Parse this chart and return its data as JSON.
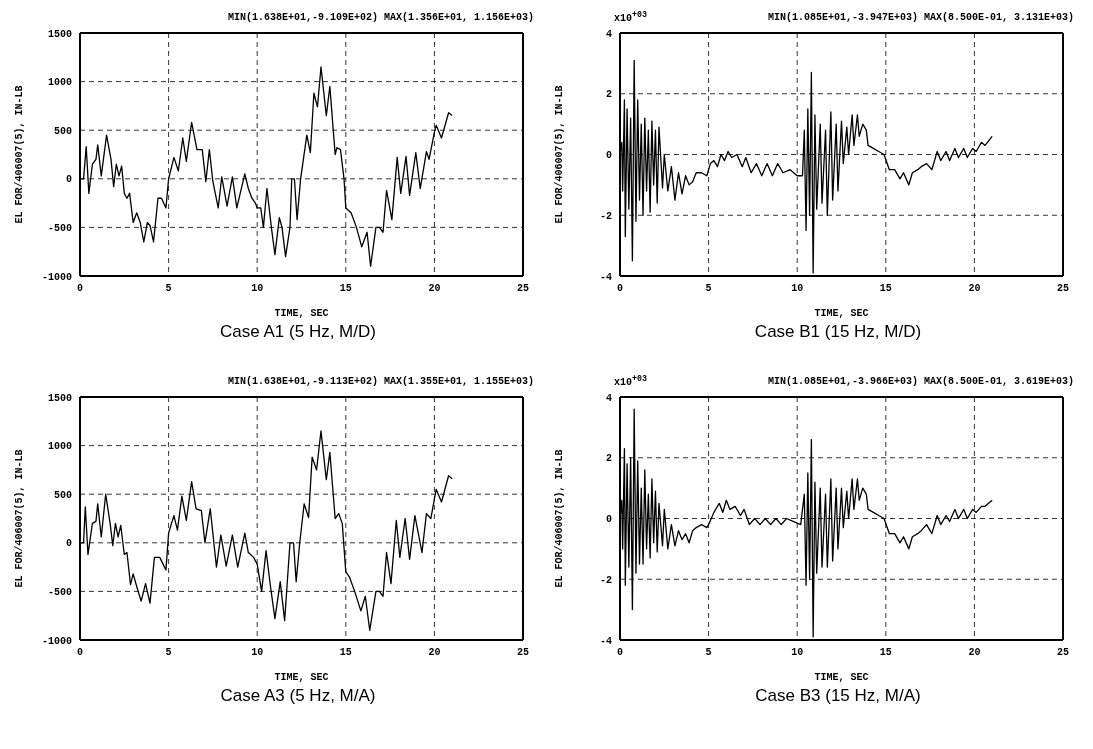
{
  "chart_data": [
    {
      "type": "line",
      "title": "MIN(1.638E+01,-9.109E+02) MAX(1.356E+01, 1.156E+03)",
      "xlabel": "TIME, SEC",
      "ylabel": "EL FOR/406007(5), IN-LB",
      "annotations": [
        "Case A1 (5 Hz, M/D)"
      ],
      "xlim": [
        0,
        25
      ],
      "xticks": [
        0,
        5,
        10,
        15,
        20,
        25
      ],
      "ylim": [
        -1000,
        1500
      ],
      "yticks": [
        -1000,
        -500,
        0,
        500,
        1000,
        1500
      ],
      "grid": true,
      "line_style": "solid",
      "series": [
        {
          "color": "#000000",
          "x": [
            0,
            0.2,
            0.35,
            0.5,
            0.7,
            0.9,
            1.0,
            1.2,
            1.5,
            1.75,
            1.9,
            2.05,
            2.2,
            2.35,
            2.5,
            2.65,
            2.8,
            3.0,
            3.2,
            3.4,
            3.6,
            3.8,
            3.95,
            4.15,
            4.4,
            4.6,
            4.85,
            5.0,
            5.3,
            5.55,
            5.8,
            6.0,
            6.3,
            6.6,
            6.9,
            7.1,
            7.3,
            7.5,
            7.8,
            8.0,
            8.3,
            8.6,
            8.85,
            9.3,
            9.5,
            9.7,
            9.9,
            10.0,
            10.2,
            10.35,
            10.55,
            10.8,
            11.0,
            11.25,
            11.4,
            11.6,
            11.85,
            11.95,
            12.1,
            12.25,
            12.45,
            12.8,
            13.0,
            13.2,
            13.4,
            13.6,
            13.9,
            14.1,
            14.4,
            14.5,
            14.7,
            14.9,
            15.0,
            15.3,
            15.6,
            15.9,
            16.2,
            16.4,
            16.7,
            16.9,
            17.1,
            17.3,
            17.6,
            17.9,
            18.1,
            18.4,
            18.6,
            18.95,
            19.2,
            19.55,
            19.7,
            20.0,
            20.1,
            20.4,
            20.8,
            21.0
          ],
          "values": [
            0,
            0,
            330,
            -150,
            150,
            200,
            350,
            30,
            450,
            200,
            -80,
            150,
            30,
            130,
            -150,
            -200,
            -150,
            -450,
            -350,
            -450,
            -650,
            -450,
            -480,
            -650,
            -200,
            -200,
            -300,
            0,
            220,
            80,
            420,
            180,
            580,
            300,
            300,
            -30,
            300,
            -30,
            -300,
            20,
            -280,
            20,
            -300,
            50,
            -100,
            -200,
            -250,
            -300,
            -300,
            -500,
            -100,
            -500,
            -780,
            -400,
            -500,
            -800,
            -500,
            0,
            0,
            -420,
            0,
            450,
            270,
            880,
            740,
            1150,
            650,
            950,
            250,
            320,
            300,
            0,
            -300,
            -350,
            -500,
            -700,
            -550,
            -900,
            -500,
            -500,
            -550,
            -120,
            -420,
            220,
            -150,
            230,
            -170,
            270,
            -100,
            280,
            200,
            480,
            550,
            420,
            680,
            650
          ]
        }
      ]
    },
    {
      "type": "line",
      "title": "MIN(1.085E+01,-3.947E+03) MAX(8.500E-01, 3.131E+03)",
      "xlabel": "TIME, SEC",
      "ylabel": "EL FOR/406007(5), IN-LB",
      "annotations": [
        "x10$^{+03}$",
        "Case B1 (15 Hz, M/D)"
      ],
      "xlim": [
        0,
        25
      ],
      "xticks": [
        0,
        5,
        10,
        15,
        20,
        25
      ],
      "ylim": [
        -4,
        4
      ],
      "yticks": [
        -4,
        -2,
        0,
        2,
        4
      ],
      "grid": true,
      "line_style": "solid",
      "series": [
        {
          "color": "#000000",
          "x": [
            0,
            0.1,
            0.15,
            0.25,
            0.3,
            0.4,
            0.5,
            0.6,
            0.7,
            0.8,
            0.9,
            1.0,
            1.1,
            1.2,
            1.3,
            1.4,
            1.5,
            1.6,
            1.7,
            1.8,
            1.9,
            2.0,
            2.1,
            2.2,
            2.4,
            2.5,
            2.7,
            2.9,
            3.1,
            3.3,
            3.5,
            3.7,
            3.9,
            4.1,
            4.3,
            4.6,
            4.9,
            5.1,
            5.3,
            5.5,
            5.7,
            5.9,
            6.1,
            6.3,
            6.6,
            6.9,
            7.1,
            7.4,
            7.7,
            8.0,
            8.3,
            8.6,
            8.9,
            9.2,
            9.6,
            10.0,
            10.3,
            10.4,
            10.5,
            10.6,
            10.7,
            10.8,
            10.9,
            11.0,
            11.1,
            11.3,
            11.4,
            11.6,
            11.7,
            11.9,
            12.0,
            12.2,
            12.3,
            12.5,
            12.6,
            12.8,
            12.9,
            13.1,
            13.2,
            13.4,
            13.5,
            13.7,
            13.9,
            14.0,
            14.3,
            14.6,
            14.9,
            15.2,
            15.5,
            15.8,
            16.0,
            16.3,
            16.5,
            16.8,
            17.0,
            17.3,
            17.6,
            17.9,
            18.1,
            18.4,
            18.6,
            18.9,
            19.1,
            19.4,
            19.6,
            19.9,
            20.1,
            20.4,
            20.6,
            21.0
          ],
          "values": [
            0,
            0.4,
            -1.2,
            1.8,
            -2.7,
            1.5,
            -1.8,
            1.2,
            -3.5,
            3.1,
            -2.2,
            1.8,
            -1.5,
            1.0,
            -2.0,
            1.2,
            -1.2,
            0.8,
            -1.9,
            1.1,
            -1.0,
            0.8,
            -1.6,
            0.9,
            -1.1,
            0.0,
            -1.2,
            -0.4,
            -1.5,
            -0.6,
            -1.3,
            -0.7,
            -1.0,
            -0.9,
            -0.6,
            -0.6,
            -0.7,
            -0.3,
            -0.2,
            -0.4,
            0.0,
            -0.2,
            0.1,
            -0.1,
            0.0,
            -0.4,
            -0.1,
            -0.6,
            -0.3,
            -0.7,
            -0.3,
            -0.7,
            -0.3,
            -0.6,
            -0.5,
            -0.7,
            -0.7,
            0.8,
            -2.5,
            1.5,
            -2.0,
            2.7,
            -3.9,
            1.3,
            -1.8,
            1.0,
            -1.6,
            0.8,
            -2.0,
            1.4,
            -1.5,
            1.0,
            -1.2,
            1.1,
            -0.3,
            0.9,
            0.0,
            1.3,
            0.3,
            1.3,
            0.6,
            1.0,
            0.8,
            0.3,
            0.2,
            0.1,
            0.0,
            -0.5,
            -0.5,
            -0.8,
            -0.6,
            -1.0,
            -0.6,
            -0.5,
            -0.4,
            -0.3,
            -0.5,
            0.1,
            -0.2,
            0.1,
            -0.2,
            0.2,
            -0.1,
            0.2,
            -0.1,
            0.2,
            0.1,
            0.4,
            0.3,
            0.6
          ]
        }
      ]
    },
    {
      "type": "line",
      "title": "MIN(1.638E+01,-9.113E+02) MAX(1.355E+01, 1.155E+03)",
      "xlabel": "TIME, SEC",
      "ylabel": "EL FOR/406007(5), IN-LB",
      "annotations": [
        "Case A3 (5 Hz, M/A)"
      ],
      "xlim": [
        0,
        25
      ],
      "xticks": [
        0,
        5,
        10,
        15,
        20,
        25
      ],
      "ylim": [
        -1000,
        1500
      ],
      "yticks": [
        -1000,
        -500,
        0,
        500,
        1000,
        1500
      ],
      "grid": true,
      "line_style": "solid",
      "series": [
        {
          "color": "#000000",
          "x": [
            0,
            0.2,
            0.3,
            0.45,
            0.7,
            0.9,
            1.0,
            1.2,
            1.45,
            1.7,
            1.85,
            2.0,
            2.15,
            2.3,
            2.5,
            2.65,
            2.85,
            3.0,
            3.2,
            3.45,
            3.7,
            3.95,
            4.2,
            4.5,
            4.85,
            5.0,
            5.3,
            5.5,
            5.75,
            6.0,
            6.3,
            6.55,
            6.85,
            7.05,
            7.35,
            7.7,
            7.95,
            8.25,
            8.6,
            8.9,
            9.3,
            9.5,
            9.8,
            10.0,
            10.25,
            10.5,
            10.75,
            11.0,
            11.3,
            11.55,
            11.85,
            12.05,
            12.2,
            12.4,
            12.65,
            12.9,
            13.1,
            13.35,
            13.6,
            13.9,
            14.1,
            14.4,
            14.6,
            14.8,
            15.0,
            15.2,
            15.5,
            15.85,
            16.1,
            16.35,
            16.7,
            16.9,
            17.1,
            17.3,
            17.55,
            17.85,
            18.05,
            18.35,
            18.6,
            18.9,
            19.3,
            19.55,
            19.8,
            20.1,
            20.4,
            20.8,
            21.0
          ],
          "values": [
            0,
            0,
            370,
            -120,
            200,
            220,
            400,
            60,
            500,
            200,
            -30,
            200,
            60,
            180,
            -120,
            -100,
            -430,
            -320,
            -450,
            -600,
            -420,
            -620,
            -150,
            -150,
            -280,
            100,
            280,
            130,
            480,
            230,
            630,
            350,
            330,
            0,
            350,
            -250,
            80,
            -240,
            80,
            -250,
            100,
            -100,
            -150,
            -220,
            -500,
            -80,
            -450,
            -780,
            -400,
            -800,
            0,
            0,
            -400,
            0,
            400,
            260,
            880,
            750,
            1150,
            650,
            930,
            250,
            300,
            200,
            -300,
            -350,
            -500,
            -700,
            -550,
            -900,
            -500,
            -500,
            -550,
            -100,
            -420,
            230,
            -150,
            250,
            -170,
            280,
            -100,
            300,
            250,
            550,
            420,
            690,
            660
          ]
        }
      ]
    },
    {
      "type": "line",
      "title": "MIN(1.085E+01,-3.966E+03) MAX(8.500E-01, 3.619E+03)",
      "xlabel": "TIME, SEC",
      "ylabel": "EL FOR/406007(5), IN-LB",
      "annotations": [
        "x10$^{+03}$",
        "Case B3 (15 Hz, M/A)"
      ],
      "xlim": [
        0,
        25
      ],
      "xticks": [
        0,
        5,
        10,
        15,
        20,
        25
      ],
      "ylim": [
        -4,
        4
      ],
      "yticks": [
        -4,
        -2,
        0,
        2,
        4
      ],
      "grid": true,
      "line_style": "solid",
      "series": [
        {
          "color": "#000000",
          "x": [
            0,
            0.1,
            0.15,
            0.25,
            0.3,
            0.4,
            0.5,
            0.6,
            0.7,
            0.8,
            0.9,
            1.0,
            1.1,
            1.2,
            1.3,
            1.4,
            1.5,
            1.6,
            1.7,
            1.8,
            1.9,
            2.0,
            2.1,
            2.2,
            2.4,
            2.5,
            2.7,
            2.9,
            3.1,
            3.3,
            3.5,
            3.7,
            3.9,
            4.1,
            4.3,
            4.6,
            4.9,
            5.0,
            5.3,
            5.6,
            5.8,
            6.0,
            6.2,
            6.5,
            6.8,
            7.0,
            7.3,
            7.6,
            7.9,
            8.2,
            8.5,
            8.8,
            9.1,
            9.4,
            9.8,
            10.2,
            10.4,
            10.5,
            10.6,
            10.7,
            10.8,
            10.9,
            11.0,
            11.1,
            11.3,
            11.4,
            11.6,
            11.7,
            11.9,
            12.0,
            12.2,
            12.3,
            12.5,
            12.6,
            12.8,
            12.9,
            13.1,
            13.2,
            13.4,
            13.5,
            13.7,
            13.9,
            14.0,
            14.3,
            14.6,
            14.9,
            15.2,
            15.5,
            15.8,
            16.0,
            16.3,
            16.5,
            16.8,
            17.0,
            17.3,
            17.6,
            17.9,
            18.1,
            18.4,
            18.6,
            18.9,
            19.1,
            19.4,
            19.6,
            19.9,
            20.1,
            20.4,
            20.6,
            21.0
          ],
          "values": [
            0,
            0.6,
            -1.0,
            2.3,
            -2.2,
            1.8,
            -1.6,
            2.0,
            -3.0,
            3.6,
            -1.8,
            1.9,
            -1.5,
            1.0,
            -1.5,
            1.6,
            -1.0,
            0.8,
            -1.3,
            1.3,
            -0.8,
            0.9,
            -1.1,
            0.5,
            -0.9,
            0.3,
            -1.0,
            -0.2,
            -0.9,
            -0.4,
            -0.7,
            -0.5,
            -0.8,
            -0.4,
            -0.3,
            -0.2,
            -0.3,
            -0.2,
            0.2,
            0.5,
            0.2,
            0.6,
            0.3,
            0.4,
            0.1,
            0.3,
            -0.2,
            0.0,
            -0.2,
            0.0,
            -0.2,
            0.0,
            -0.2,
            0.0,
            -0.1,
            -0.2,
            0.8,
            -2.2,
            1.5,
            -2.0,
            2.6,
            -3.9,
            1.2,
            -1.8,
            1.0,
            -1.6,
            0.8,
            -1.6,
            1.3,
            -1.4,
            1.0,
            -1.0,
            1.0,
            -0.3,
            0.9,
            0.0,
            1.3,
            0.3,
            1.3,
            0.6,
            1.0,
            0.8,
            0.3,
            0.2,
            0.1,
            0.0,
            -0.5,
            -0.5,
            -0.8,
            -0.6,
            -1.0,
            -0.6,
            -0.5,
            -0.4,
            -0.2,
            -0.5,
            0.1,
            -0.2,
            0.1,
            -0.1,
            0.3,
            0.0,
            0.3,
            0.0,
            0.3,
            0.2,
            0.4,
            0.4,
            0.6
          ]
        }
      ]
    }
  ]
}
